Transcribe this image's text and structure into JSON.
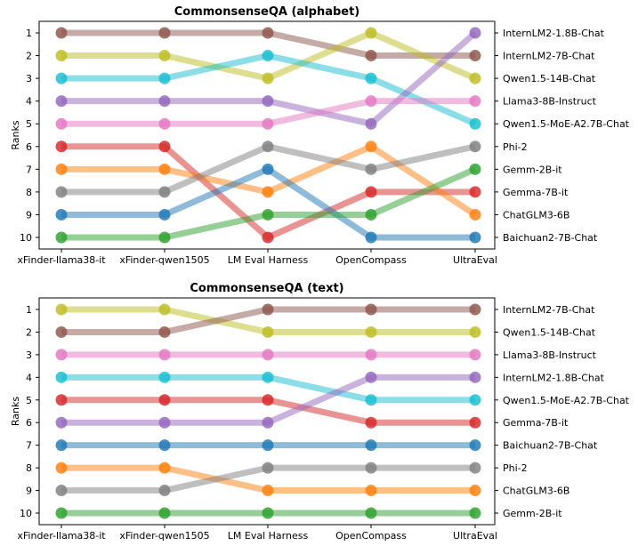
{
  "chart_data": [
    {
      "type": "line",
      "title": "CommonsenseQA (alphabet)",
      "xlabel": "",
      "ylabel": "Ranks",
      "categories": [
        "xFinder-llama38-it",
        "xFinder-qwen1505",
        "LM Eval Harness",
        "OpenCompass",
        "UltraEval"
      ],
      "ylim": [
        1,
        10
      ],
      "y_inverted": true,
      "grid": false,
      "right_labels": [
        "InternLM2-1.8B-Chat",
        "InternLM2-7B-Chat",
        "Qwen1.5-14B-Chat",
        "Llama3-8B-Instruct",
        "Qwen1.5-MoE-A2.7B-Chat",
        "Phi-2",
        "Gemm-2B-it",
        "Gemma-7B-it",
        "ChatGLM3-6B",
        "Baichuan2-7B-Chat"
      ],
      "series": [
        {
          "color": "#8c564b",
          "values": [
            1,
            1,
            1,
            2,
            2
          ]
        },
        {
          "color": "#bcbd22",
          "values": [
            2,
            2,
            3,
            1,
            3
          ]
        },
        {
          "color": "#17becf",
          "values": [
            3,
            3,
            2,
            3,
            5
          ]
        },
        {
          "color": "#9467bd",
          "values": [
            4,
            4,
            4,
            5,
            1
          ]
        },
        {
          "color": "#e377c2",
          "values": [
            5,
            5,
            5,
            4,
            4
          ]
        },
        {
          "color": "#d62728",
          "values": [
            6,
            6,
            10,
            8,
            8
          ]
        },
        {
          "color": "#ff7f0e",
          "values": [
            7,
            7,
            8,
            6,
            9
          ]
        },
        {
          "color": "#7f7f7f",
          "values": [
            8,
            8,
            6,
            7,
            6
          ]
        },
        {
          "color": "#1f77b4",
          "values": [
            9,
            9,
            7,
            10,
            10
          ]
        },
        {
          "color": "#2ca02c",
          "values": [
            10,
            10,
            9,
            9,
            7
          ]
        }
      ]
    },
    {
      "type": "line",
      "title": "CommonsenseQA (text)",
      "xlabel": "",
      "ylabel": "Ranks",
      "categories": [
        "xFinder-llama38-it",
        "xFinder-qwen1505",
        "LM Eval Harness",
        "OpenCompass",
        "UltraEval"
      ],
      "ylim": [
        1,
        10
      ],
      "y_inverted": true,
      "grid": false,
      "right_labels": [
        "InternLM2-7B-Chat",
        "Qwen1.5-14B-Chat",
        "Llama3-8B-Instruct",
        "InternLM2-1.8B-Chat",
        "Qwen1.5-MoE-A2.7B-Chat",
        "Gemma-7B-it",
        "Baichuan2-7B-Chat",
        "Phi-2",
        "ChatGLM3-6B",
        "Gemm-2B-it"
      ],
      "series": [
        {
          "color": "#bcbd22",
          "values": [
            1,
            1,
            2,
            2,
            2
          ]
        },
        {
          "color": "#8c564b",
          "values": [
            2,
            2,
            1,
            1,
            1
          ]
        },
        {
          "color": "#e377c2",
          "values": [
            3,
            3,
            3,
            3,
            3
          ]
        },
        {
          "color": "#17becf",
          "values": [
            4,
            4,
            4,
            5,
            5
          ]
        },
        {
          "color": "#d62728",
          "values": [
            5,
            5,
            5,
            6,
            6
          ]
        },
        {
          "color": "#9467bd",
          "values": [
            6,
            6,
            6,
            4,
            4
          ]
        },
        {
          "color": "#1f77b4",
          "values": [
            7,
            7,
            7,
            7,
            7
          ]
        },
        {
          "color": "#ff7f0e",
          "values": [
            8,
            8,
            9,
            9,
            9
          ]
        },
        {
          "color": "#7f7f7f",
          "values": [
            9,
            9,
            8,
            8,
            8
          ]
        },
        {
          "color": "#2ca02c",
          "values": [
            10,
            10,
            10,
            10,
            10
          ]
        }
      ]
    }
  ]
}
